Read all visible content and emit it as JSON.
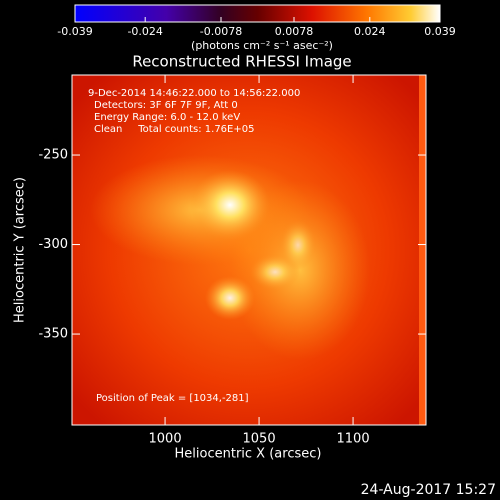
{
  "chart_data": {
    "type": "heatmap",
    "title": "Reconstructed RHESSI Image",
    "xlabel": "Heliocentric X (arcsec)",
    "ylabel": "Heliocentric Y (arcsec)",
    "xlim": [
      950.5,
      1138.8
    ],
    "xticks": [
      1000,
      1050,
      1100
    ],
    "ylim": [
      -400.8,
      -205.3
    ],
    "yticks": [
      -250,
      -300,
      -350
    ],
    "colorbar": {
      "label": "(photons cm⁻² s⁻¹ asec⁻²)",
      "lim": [
        -0.039,
        0.039
      ],
      "ticks": [
        -0.039,
        -0.024,
        -0.0078,
        0.0078,
        0.024,
        0.039
      ]
    },
    "annotations": [
      "9-Dec-2014 14:46:22.000 to 14:56:22.000",
      "Detectors: 3F 6F 7F 9F, Att 0",
      "Energy Range: 6.0 - 12.0 keV",
      "Clean     Total counts: 1.76E+05"
    ],
    "peak_label": "Position of Peak = [1034,-281]",
    "footer": "24-Aug-2017 15:27"
  }
}
